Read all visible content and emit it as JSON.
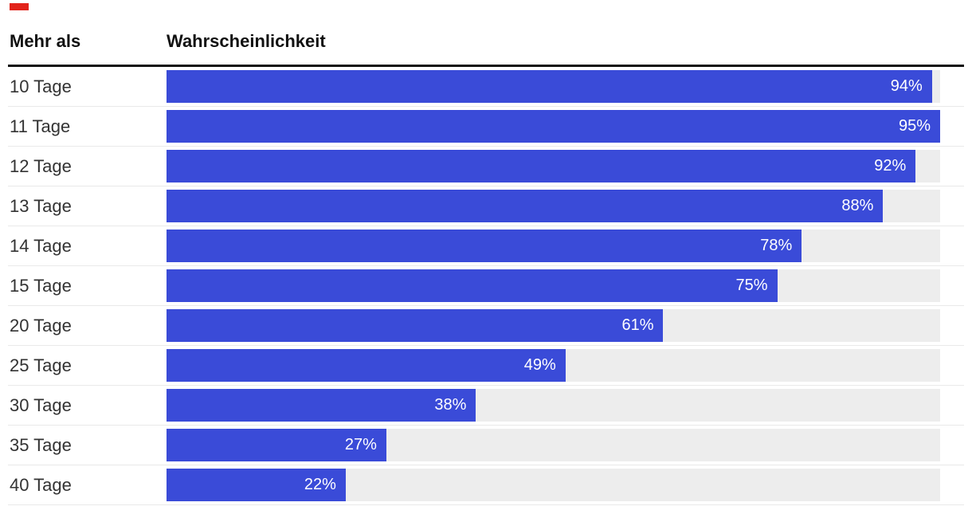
{
  "accent": {
    "color": "#e2231a"
  },
  "header": {
    "col1": "Mehr als",
    "col2": "Wahrscheinlichkeit"
  },
  "chart_data": {
    "type": "bar",
    "orientation": "horizontal",
    "title": "",
    "categories": [
      "10 Tage",
      "11 Tage",
      "12 Tage",
      "13 Tage",
      "14 Tage",
      "15 Tage",
      "20 Tage",
      "25 Tage",
      "30 Tage",
      "35 Tage",
      "40 Tage"
    ],
    "values": [
      94,
      95,
      92,
      88,
      78,
      75,
      61,
      49,
      38,
      27,
      22
    ],
    "value_suffix": "%",
    "xlabel": "Wahrscheinlichkeit",
    "ylabel": "Mehr als",
    "xlim": [
      0,
      95
    ],
    "grid": false,
    "legend": "none",
    "colors": {
      "bar": "#3a4bd8",
      "track": "#ededed",
      "value_label": "#ffffff"
    }
  }
}
